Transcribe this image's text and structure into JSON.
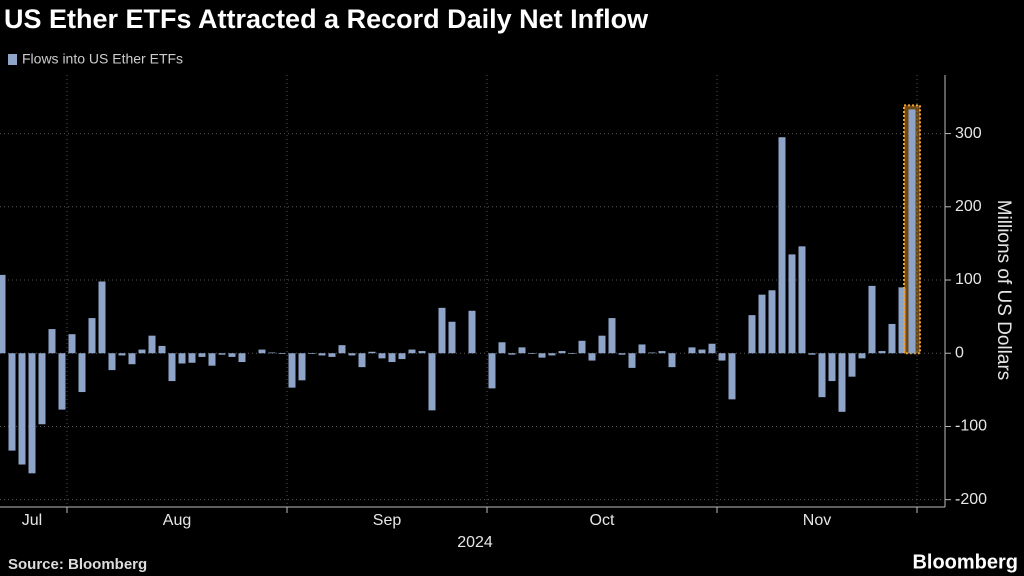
{
  "chart_data": {
    "type": "bar",
    "title": "US Ether ETFs Attracted a Record Daily Net Inflow",
    "source": "Source: Bloomberg",
    "brand": "Bloomberg",
    "x_axis_title": "2024",
    "y_axis_title": "Millions of US Dollars",
    "categories": [
      "Jul",
      "Jul",
      "Jul",
      "Jul",
      "Jul",
      "Jul",
      "Jul",
      "Aug",
      "Aug",
      "Aug",
      "Aug",
      "Aug",
      "Aug",
      "Aug",
      "Aug",
      "Aug",
      "Aug",
      "Aug",
      "Aug",
      "Aug",
      "Aug",
      "Aug",
      "Aug",
      "Aug",
      "Aug",
      "Aug",
      "Aug",
      "Aug",
      "Aug",
      "Sep",
      "Sep",
      "Sep",
      "Sep",
      "Sep",
      "Sep",
      "Sep",
      "Sep",
      "Sep",
      "Sep",
      "Sep",
      "Sep",
      "Sep",
      "Sep",
      "Sep",
      "Sep",
      "Sep",
      "Sep",
      "Sep",
      "Sep",
      "Oct",
      "Oct",
      "Oct",
      "Oct",
      "Oct",
      "Oct",
      "Oct",
      "Oct",
      "Oct",
      "Oct",
      "Oct",
      "Oct",
      "Oct",
      "Oct",
      "Oct",
      "Oct",
      "Oct",
      "Oct",
      "Oct",
      "Oct",
      "Oct",
      "Oct",
      "Oct",
      "Nov",
      "Nov",
      "Nov",
      "Nov",
      "Nov",
      "Nov",
      "Nov",
      "Nov",
      "Nov",
      "Nov",
      "Nov",
      "Nov",
      "Nov",
      "Nov",
      "Nov",
      "Nov",
      "Nov",
      "Nov",
      "Nov",
      "Nov"
    ],
    "series": [
      {
        "name": "Flows into US Ether ETFs",
        "color": "#8ea4c8",
        "values": [
          107,
          -133,
          -152,
          -164,
          -97,
          33,
          -77,
          26,
          -53,
          48,
          98,
          -23,
          -3,
          -15,
          5,
          24,
          10,
          -38,
          -14,
          -13,
          -5,
          -17,
          -2,
          -5,
          -12,
          0,
          5,
          1,
          -1,
          -47,
          -37,
          -1,
          -3,
          -5,
          11,
          -3,
          -19,
          2,
          -7,
          -12,
          -8,
          5,
          3,
          -78,
          62,
          43,
          0,
          58,
          0,
          -48,
          15,
          -2,
          8,
          -1,
          -6,
          -3,
          3,
          -1,
          17,
          -10,
          24,
          48,
          -2,
          -20,
          12,
          1,
          3,
          -19,
          0,
          8,
          5,
          13,
          -10,
          -63,
          0,
          52,
          80,
          86,
          295,
          135,
          146,
          -2,
          -60,
          -38,
          -80,
          -32,
          -7,
          92,
          3,
          40,
          90,
          333
        ]
      }
    ],
    "ylim": [
      -210,
      380
    ],
    "yticks": [
      -200,
      -100,
      0,
      100,
      200,
      300
    ],
    "grid": true,
    "highlight_last": true,
    "highlight_color": "#f0a030"
  }
}
